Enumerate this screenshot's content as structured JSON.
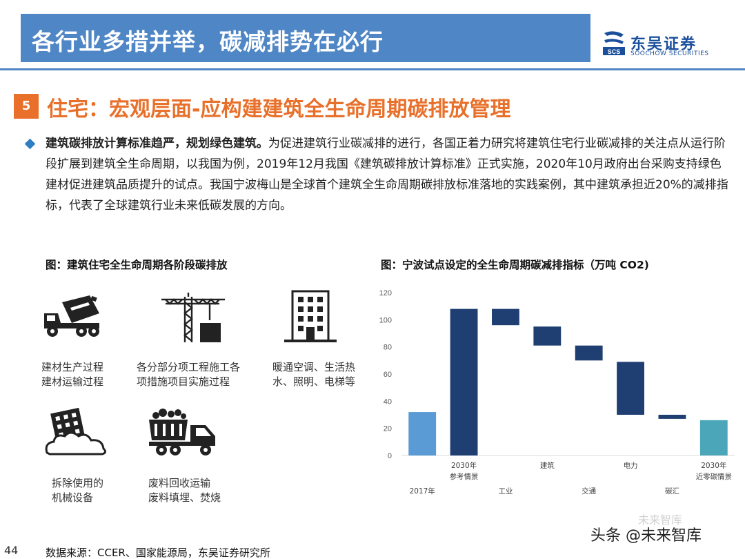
{
  "header": {
    "title": "各行业多措并举，碳减排势在必行",
    "logo_cn": "东吴证券",
    "logo_en": "SOOCHOW SECURITIES",
    "logo_mark": "SCS"
  },
  "section": {
    "number": "5",
    "title": "住宅：宏观层面-应构建建筑全生命周期碳排放管理"
  },
  "paragraph": {
    "bold": "建筑碳排放计算标准趋严，规划绿色建筑。",
    "text": "为促进建筑行业碳减排的进行，各国正着力研究将建筑住宅行业碳减排的关注点从运行阶段扩展到建筑全生命周期，以我国为例，2019年12月我国《建筑碳排放计算标准》正式实施，2020年10月政府出台采购支持绿色建材促进建筑品质提升的试点。我国宁波梅山是全球首个建筑全生命周期碳排放标准落地的实践案例，其中建筑承担近20%的减排指标，代表了全球建筑行业未来低碳发展的方向。"
  },
  "figure_left": {
    "caption": "图：建筑住宅全生命周期各阶段碳排放",
    "stages": [
      {
        "icon": "cement-truck-icon",
        "line1": "建材生产过程",
        "line2": "建材运输过程"
      },
      {
        "icon": "tower-crane-icon",
        "line1": "各分部分项工程施工各",
        "line2": "项措施项目实施过程"
      },
      {
        "icon": "building-icon",
        "line1": "暖通空调、生活热",
        "line2": "水、照明、电梯等"
      },
      {
        "icon": "demolition-icon",
        "line1": "拆除使用的",
        "line2": "机械设备"
      },
      {
        "icon": "dump-truck-icon",
        "line1": "废料回收运输",
        "line2": "废料填埋、焚烧"
      }
    ]
  },
  "figure_right": {
    "caption": "图：宁波试点设定的全生命周期碳减排指标（万吨 CO2)"
  },
  "chart_data": {
    "type": "bar",
    "subtype": "waterfall",
    "ylim": [
      0,
      120
    ],
    "yticks": [
      0,
      20,
      40,
      60,
      80,
      100,
      120
    ],
    "grid": false,
    "categories": [
      {
        "top": "",
        "bottom": "2017年"
      },
      {
        "top": "2030年\n参考情景",
        "bottom": ""
      },
      {
        "top": "",
        "bottom": "工业"
      },
      {
        "top": "建筑",
        "bottom": ""
      },
      {
        "top": "",
        "bottom": "交通"
      },
      {
        "top": "电力",
        "bottom": ""
      },
      {
        "top": "",
        "bottom": "碳汇"
      },
      {
        "top": "2030年\n近零碳情景",
        "bottom": ""
      }
    ],
    "bars": [
      {
        "low": 0,
        "high": 32,
        "color": "#5b9bd5"
      },
      {
        "low": 0,
        "high": 108,
        "color": "#1f3f73"
      },
      {
        "low": 96,
        "high": 108,
        "color": "#1f3f73"
      },
      {
        "low": 81,
        "high": 95,
        "color": "#1f3f73"
      },
      {
        "low": 70,
        "high": 81,
        "color": "#1f3f73"
      },
      {
        "low": 30,
        "high": 69,
        "color": "#1f3f73"
      },
      {
        "low": 27,
        "high": 30,
        "color": "#1f3f73"
      },
      {
        "low": 0,
        "high": 26,
        "color": "#4aa6b8"
      }
    ]
  },
  "footer": {
    "page_number": "44",
    "source": "数据来源：CCER、国家能源局，东吴证券研究所",
    "watermark": "头条 @未来智库",
    "watermark_bg": "未来智库"
  },
  "colors": {
    "header_blue": "#4f86c6",
    "accent_orange": "#e8702a",
    "bar_dark": "#1f3f73",
    "bar_light": "#5b9bd5",
    "bar_teal": "#4aa6b8"
  }
}
